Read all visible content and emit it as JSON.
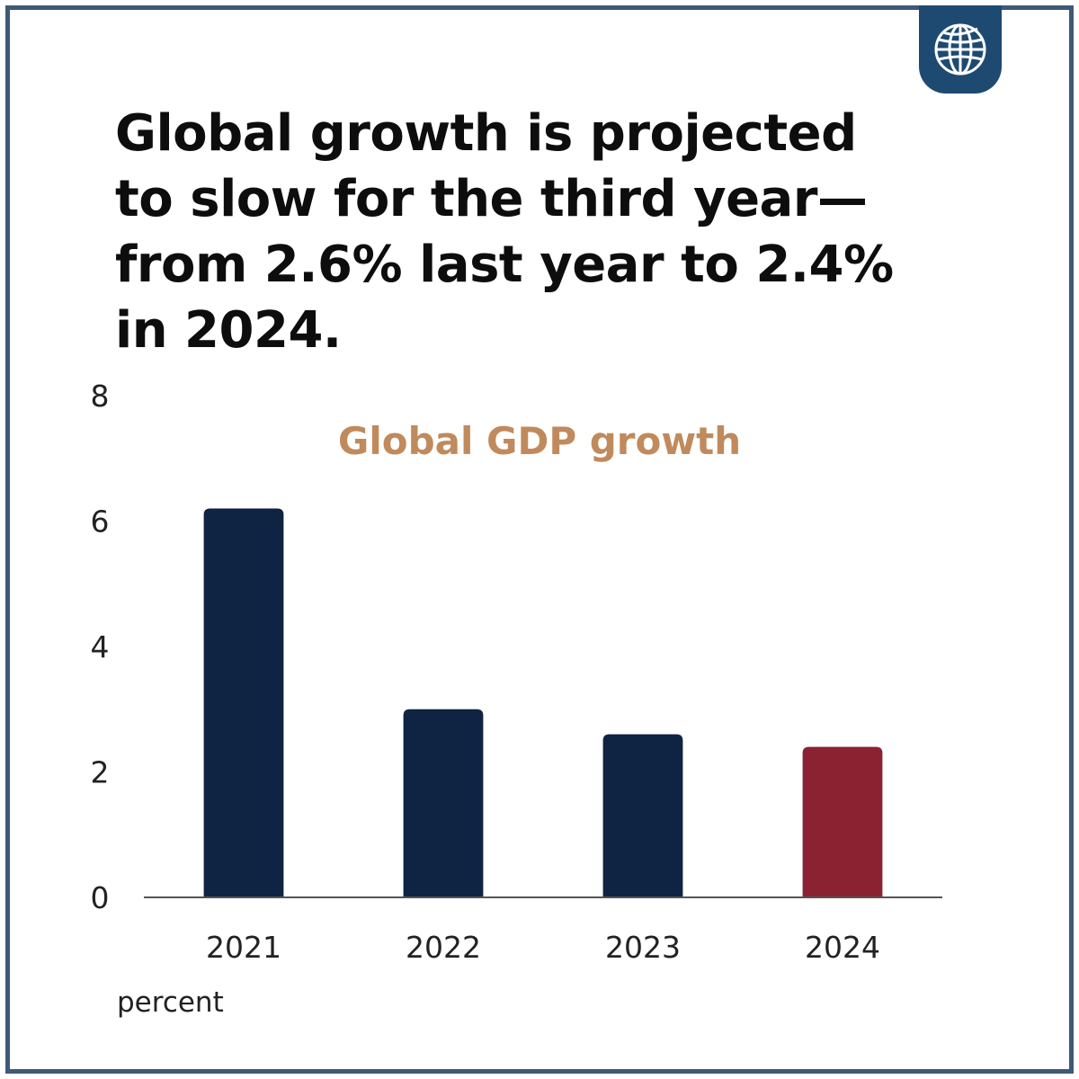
{
  "headline": {
    "lines": [
      "Global growth is projected",
      "to slow for the third year—",
      "from 2.6% last year to 2.4%",
      "in 2024."
    ]
  },
  "logo": {
    "icon": "globe-icon"
  },
  "colors": {
    "frame": "#3d5a78",
    "badge": "#1e4a72",
    "bar_primary": "#0f2343",
    "bar_highlight": "#8b2232",
    "chart_title": "#c08a5c",
    "axis": "#555555"
  },
  "chart_data": {
    "type": "bar",
    "title": "Global GDP growth",
    "unit_label": "percent",
    "categories": [
      "2021",
      "2022",
      "2023",
      "2024"
    ],
    "values": [
      6.2,
      3.0,
      2.6,
      2.4
    ],
    "highlight_index": 3,
    "ylim": [
      0,
      8
    ],
    "yticks": [
      "0",
      "2",
      "4",
      "6",
      "8"
    ],
    "xlabel": "",
    "ylabel": "",
    "grid": false,
    "legend": "none"
  }
}
